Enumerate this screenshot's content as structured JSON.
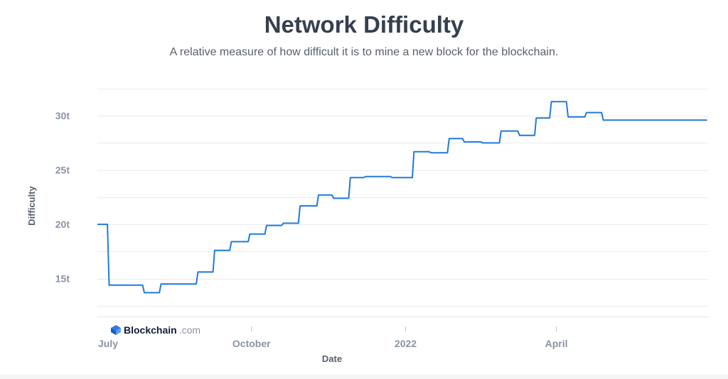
{
  "title": "Network Difficulty",
  "subtitle": "A relative measure of how difficult it is to mine a new block for the blockchain.",
  "brand": {
    "name": "Blockchain",
    "suffix": ".com"
  },
  "colors": {
    "line": "#1f7ae0",
    "grid": "#e8ebef",
    "axis_text": "#8a94a6",
    "title": "#353f4f"
  },
  "chart_data": {
    "type": "line",
    "title": "Network Difficulty",
    "xlabel": "Date",
    "ylabel": "Difficulty",
    "x_ticks": [
      "July",
      "October",
      "2022",
      "April"
    ],
    "y_ticks": [
      "15t",
      "20t",
      "25t",
      "30t"
    ],
    "ylim": [
      11.5,
      32.5
    ],
    "xlim": [
      "2021-07-01",
      "2022-06-30"
    ],
    "grid": true,
    "series": [
      {
        "x": [
          "2021-07-01",
          "2021-07-07",
          "2021-07-08",
          "2021-07-18",
          "2021-07-19",
          "2021-07-28",
          "2021-07-29",
          "2021-08-07",
          "2021-08-08",
          "2021-08-14",
          "2021-08-15",
          "2021-08-29",
          "2021-08-30",
          "2021-09-08",
          "2021-09-09",
          "2021-09-18",
          "2021-09-19",
          "2021-09-29",
          "2021-09-30",
          "2021-10-09",
          "2021-10-10",
          "2021-10-19",
          "2021-10-20",
          "2021-10-29",
          "2021-10-30",
          "2021-11-09",
          "2021-11-10",
          "2021-11-18",
          "2021-11-19",
          "2021-11-28",
          "2021-11-29",
          "2021-12-07",
          "2021-12-08",
          "2021-12-23",
          "2021-12-24",
          "2022-01-05",
          "2022-01-06",
          "2022-01-15",
          "2022-01-16",
          "2022-01-26",
          "2022-01-27",
          "2022-02-04",
          "2022-02-05",
          "2022-02-15",
          "2022-02-16",
          "2022-02-26",
          "2022-02-27",
          "2022-03-09",
          "2022-03-10",
          "2022-03-19",
          "2022-03-20",
          "2022-03-28",
          "2022-03-29",
          "2022-04-07",
          "2022-04-08",
          "2022-04-18",
          "2022-04-19",
          "2022-04-28",
          "2022-04-29",
          "2022-05-08",
          "2022-05-09",
          "2022-05-18",
          "2022-05-19",
          "2022-05-28",
          "2022-05-29",
          "2022-06-07",
          "2022-06-08",
          "2022-06-18",
          "2022-06-19",
          "2022-06-29",
          "2022-06-30"
        ],
        "y": [
          20.0,
          20.0,
          14.4,
          14.4,
          14.4,
          14.4,
          13.7,
          13.7,
          14.5,
          14.5,
          14.5,
          14.5,
          15.6,
          15.6,
          17.6,
          17.6,
          18.4,
          18.4,
          19.1,
          19.1,
          19.9,
          19.9,
          20.1,
          20.1,
          21.7,
          21.7,
          22.7,
          22.7,
          22.4,
          22.4,
          24.3,
          24.3,
          24.4,
          24.4,
          24.3,
          24.3,
          26.7,
          26.7,
          26.6,
          26.6,
          27.9,
          27.9,
          27.6,
          27.6,
          27.5,
          27.5,
          28.6,
          28.6,
          28.2,
          28.2,
          29.8,
          29.8,
          31.3,
          31.3,
          29.9,
          29.9,
          30.3,
          30.3,
          29.6,
          29.6,
          29.6,
          29.6,
          29.6,
          29.6,
          29.6,
          29.6,
          29.6,
          29.6,
          29.6,
          29.6,
          29.6
        ]
      }
    ]
  }
}
